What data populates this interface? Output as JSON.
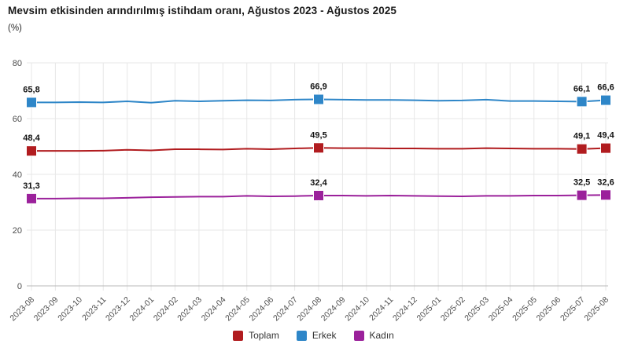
{
  "page": {
    "title": "Mevsim etkisinden arındırılmış istihdam oranı, Ağustos 2023 - Ağustos 2025",
    "subtitle": "(%)"
  },
  "colors": {
    "toplam": "#B11C1F",
    "erkek": "#2E86C8",
    "kadin": "#9B219B",
    "grid_line": "#E7E7E7",
    "axis_line": "#B8B8B8",
    "tick_text": "#4D4D4D",
    "value_label_text": "#111111"
  },
  "chart_data": {
    "type": "line",
    "title": "Mevsim etkisinden arındırılmış istihdam oranı, Ağustos 2023 - Ağustos 2025",
    "xlabel": "",
    "ylabel": "(%)",
    "ylim": [
      0,
      80
    ],
    "yticks": [
      0,
      20,
      40,
      60,
      80
    ],
    "grid": true,
    "legend_position": "bottom",
    "marker_shape": "square",
    "categories": [
      "2023-08",
      "2023-09",
      "2023-10",
      "2023-11",
      "2023-12",
      "2024-01",
      "2024-02",
      "2024-03",
      "2024-04",
      "2024-05",
      "2024-06",
      "2024-07",
      "2024-08",
      "2024-09",
      "2024-10",
      "2024-11",
      "2024-12",
      "2025-01",
      "2025-02",
      "2025-03",
      "2025-04",
      "2025-05",
      "2025-06",
      "2025-07",
      "2025-08"
    ],
    "series": [
      {
        "name": "Toplam",
        "color": "#B11C1F",
        "values": [
          48.4,
          48.4,
          48.4,
          48.5,
          48.8,
          48.6,
          49.0,
          49.0,
          48.9,
          49.2,
          49.0,
          49.3,
          49.5,
          49.4,
          49.4,
          49.3,
          49.3,
          49.2,
          49.2,
          49.4,
          49.3,
          49.2,
          49.2,
          49.1,
          49.4
        ]
      },
      {
        "name": "Erkek",
        "color": "#2E86C8",
        "values": [
          65.8,
          65.8,
          65.9,
          65.8,
          66.2,
          65.7,
          66.4,
          66.2,
          66.4,
          66.6,
          66.5,
          66.8,
          66.9,
          66.8,
          66.7,
          66.7,
          66.6,
          66.4,
          66.5,
          66.8,
          66.3,
          66.3,
          66.2,
          66.1,
          66.6
        ]
      },
      {
        "name": "Kadın",
        "color": "#9B219B",
        "values": [
          31.3,
          31.3,
          31.4,
          31.4,
          31.6,
          31.8,
          31.9,
          32.0,
          32.0,
          32.3,
          32.1,
          32.2,
          32.4,
          32.4,
          32.3,
          32.4,
          32.3,
          32.2,
          32.1,
          32.3,
          32.3,
          32.4,
          32.4,
          32.5,
          32.6
        ]
      }
    ],
    "labeled_categories": [
      "2023-08",
      "2024-08",
      "2025-07",
      "2025-08"
    ],
    "labeled_values": {
      "Toplam": [
        "48,4",
        "49,5",
        "49,1",
        "49,4"
      ],
      "Erkek": [
        "65,8",
        "66,9",
        "66,1",
        "66,6"
      ],
      "Kadın": [
        "31,3",
        "32,4",
        "32,5",
        "32,6"
      ]
    }
  },
  "legend": {
    "items": [
      {
        "label": "Toplam",
        "color": "#B11C1F"
      },
      {
        "label": "Erkek",
        "color": "#2E86C8"
      },
      {
        "label": "Kadın",
        "color": "#9B219B"
      }
    ]
  }
}
